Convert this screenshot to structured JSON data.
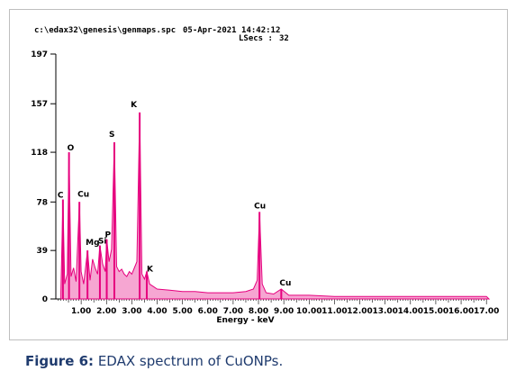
{
  "header": {
    "path": "c:\\edax32\\genesis\\genmaps.spc",
    "datetime": "05-Apr-2021 14:42:12",
    "lsecs_label": "LSecs :",
    "lsecs_value": "32"
  },
  "caption": {
    "label": "Figure 6:",
    "text": " EDAX spectrum of CuONPs."
  },
  "colors": {
    "spectrum": "#e6007e",
    "axis": "#000000"
  },
  "chart_data": {
    "type": "line",
    "title": "",
    "xlabel": "Energy - keV",
    "ylabel": "",
    "xlim": [
      0,
      17.1
    ],
    "ylim": [
      0,
      197
    ],
    "x_ticks": [
      1,
      2,
      3,
      4,
      5,
      6,
      7,
      8,
      9,
      10,
      11,
      12,
      13,
      14,
      15,
      16,
      17
    ],
    "x_tick_labels": [
      "1.00",
      "2.00",
      "3.00",
      "4.00",
      "5.00",
      "6.00",
      "7.00",
      "8.00",
      "9.00",
      "10.00",
      "11.00",
      "12.00",
      "13.00",
      "14.00",
      "15.00",
      "16.00",
      "17.00"
    ],
    "y_ticks": [
      0,
      39,
      78,
      118,
      157,
      197
    ],
    "y_tick_labels": [
      "0",
      "39",
      "78",
      "118",
      "157",
      "197"
    ],
    "peaks": [
      {
        "label": "C",
        "energy": 0.28,
        "counts": 80
      },
      {
        "label": "O",
        "energy": 0.52,
        "counts": 118
      },
      {
        "label": "Cu",
        "energy": 0.93,
        "counts": 78
      },
      {
        "label": "Mg",
        "energy": 1.25,
        "counts": 39
      },
      {
        "label": "Si",
        "energy": 1.74,
        "counts": 43
      },
      {
        "label": "P",
        "energy": 2.01,
        "counts": 48
      },
      {
        "label": "S",
        "energy": 2.31,
        "counts": 126
      },
      {
        "label": "K",
        "energy": 3.31,
        "counts": 150
      },
      {
        "label": "K",
        "energy": 3.59,
        "counts": 22
      },
      {
        "label": "Cu",
        "energy": 8.04,
        "counts": 70
      },
      {
        "label": "Cu",
        "energy": 8.9,
        "counts": 8
      }
    ],
    "series": [
      {
        "x": [
          0.2,
          0.28,
          0.35,
          0.45,
          0.52,
          0.6,
          0.7,
          0.8,
          0.93,
          1.0,
          1.1,
          1.25,
          1.35,
          1.45,
          1.55,
          1.65,
          1.74,
          1.85,
          1.95,
          2.01,
          2.1,
          2.2,
          2.31,
          2.4,
          2.5,
          2.6,
          2.7,
          2.8,
          2.9,
          3.0,
          3.1,
          3.2,
          3.31,
          3.4,
          3.5,
          3.59,
          3.7,
          3.85,
          4.0,
          4.5,
          5.0,
          5.5,
          6.0,
          6.5,
          7.0,
          7.5,
          7.8,
          7.95,
          8.04,
          8.15,
          8.3,
          8.6,
          8.9,
          9.2,
          10.0,
          11.0,
          12.0,
          13.0,
          14.0,
          15.0,
          16.0,
          17.0,
          17.1
        ],
        "y": [
          5,
          80,
          12,
          20,
          118,
          18,
          25,
          14,
          78,
          22,
          12,
          39,
          15,
          32,
          25,
          20,
          43,
          28,
          22,
          48,
          30,
          40,
          126,
          26,
          22,
          24,
          20,
          18,
          22,
          20,
          25,
          30,
          150,
          20,
          16,
          22,
          12,
          10,
          8,
          7,
          6,
          6,
          5,
          5,
          5,
          6,
          8,
          15,
          70,
          12,
          5,
          4,
          8,
          3,
          3,
          2,
          2,
          2,
          2,
          2,
          2,
          2,
          0
        ]
      }
    ]
  }
}
